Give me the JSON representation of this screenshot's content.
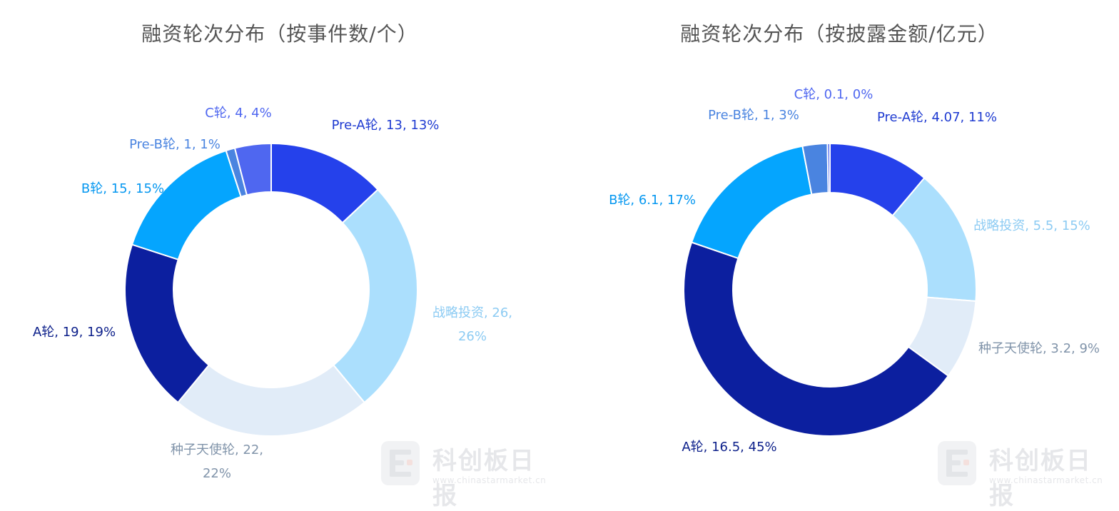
{
  "chart_data": [
    {
      "type": "pie",
      "title": "融资轮次分布（按事件数/个）",
      "slices": [
        {
          "name": "Pre-A轮",
          "value": 13,
          "percent": "13%",
          "color": "#2541eb",
          "label_color": "#1f3bd1",
          "label_lines": [
            "Pre-A轮, 13, 13%"
          ]
        },
        {
          "name": "战略投资",
          "value": 26,
          "percent": "26%",
          "color": "#abdffd",
          "label_color": "#8ccbf3",
          "label_lines": [
            "战略投资, 26,",
            "26%"
          ]
        },
        {
          "name": "种子天使轮",
          "value": 22,
          "percent": "22%",
          "color": "#e1ecf8",
          "label_color": "#8194aa",
          "label_lines": [
            "种子天使轮, 22,",
            "22%"
          ]
        },
        {
          "name": "A轮",
          "value": 19,
          "percent": "19%",
          "color": "#0c1f9f",
          "label_color": "#0c1f8a",
          "label_lines": [
            "A轮, 19, 19%"
          ]
        },
        {
          "name": "B轮",
          "value": 15,
          "percent": "15%",
          "color": "#05a5fe",
          "label_color": "#0597f0",
          "label_lines": [
            "B轮, 15, 15%"
          ]
        },
        {
          "name": "Pre-B轮",
          "value": 1,
          "percent": "1%",
          "color": "#4a84e0",
          "label_color": "#4a84e0",
          "label_lines": [
            "Pre-B轮, 1, 1%"
          ]
        },
        {
          "name": "C轮",
          "value": 4,
          "percent": "4%",
          "color": "#4f67f0",
          "label_color": "#4f67f0",
          "label_lines": [
            "C轮, 4, 4%"
          ]
        }
      ]
    },
    {
      "type": "pie",
      "title": "融资轮次分布（按披露金额/亿元）",
      "slices": [
        {
          "name": "Pre-A轮",
          "value": 4.07,
          "percent": "11%",
          "color": "#2541eb",
          "label_color": "#1f3bd1",
          "label_lines": [
            "Pre-A轮, 4.07, 11%"
          ]
        },
        {
          "name": "战略投资",
          "value": 5.5,
          "percent": "15%",
          "color": "#abdffd",
          "label_color": "#8ccbf3",
          "label_lines": [
            "战略投资, 5.5, 15%"
          ]
        },
        {
          "name": "种子天使轮",
          "value": 3.2,
          "percent": "9%",
          "color": "#e1ecf8",
          "label_color": "#8194aa",
          "label_lines": [
            "种子天使轮, 3.2, 9%"
          ]
        },
        {
          "name": "A轮",
          "value": 16.5,
          "percent": "45%",
          "color": "#0c1f9f",
          "label_color": "#0c1f8a",
          "label_lines": [
            "A轮, 16.5, 45%"
          ]
        },
        {
          "name": "B轮",
          "value": 6.1,
          "percent": "17%",
          "color": "#05a5fe",
          "label_color": "#0597f0",
          "label_lines": [
            "B轮, 6.1, 17%"
          ]
        },
        {
          "name": "Pre-B轮",
          "value": 1,
          "percent": "3%",
          "color": "#4a84e0",
          "label_color": "#4a84e0",
          "label_lines": [
            "Pre-B轮, 1, 3%"
          ]
        },
        {
          "name": "C轮",
          "value": 0.1,
          "percent": "0%",
          "color": "#4f67f0",
          "label_color": "#4f67f0",
          "label_lines": [
            "C轮, 0.1, 0%"
          ]
        }
      ]
    }
  ],
  "watermark": {
    "text": "科创板日报",
    "url": "www.chinastarmarket.cn"
  }
}
